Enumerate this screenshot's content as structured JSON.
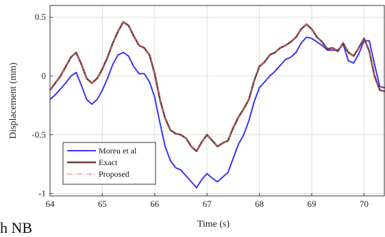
{
  "chart_data": {
    "type": "line",
    "title": "",
    "xlabel": "Time (s)",
    "ylabel": "Displacement (mm)",
    "xlim": [
      64,
      70.4
    ],
    "ylim": [
      -1.02,
      0.6
    ],
    "xticks": [
      "64",
      "65",
      "66",
      "67",
      "68",
      "69",
      "70"
    ],
    "yticks": [
      "0.5",
      "0",
      "-0.5",
      "-1"
    ],
    "xtick_values": [
      64,
      65,
      66,
      67,
      68,
      69,
      70
    ],
    "ytick_values": [
      0.5,
      0,
      -0.5,
      -1
    ],
    "grid": true,
    "legend_position": "bottom-left",
    "series": [
      {
        "name": "Moreu et al",
        "color": "#3333ff",
        "dash": "solid",
        "points": [
          [
            64,
            -0.2
          ],
          [
            64.1,
            -0.16
          ],
          [
            64.2,
            -0.11
          ],
          [
            64.3,
            -0.06
          ],
          [
            64.4,
            0.0
          ],
          [
            64.5,
            0.03
          ],
          [
            64.6,
            -0.08
          ],
          [
            64.7,
            -0.2
          ],
          [
            64.8,
            -0.24
          ],
          [
            64.9,
            -0.2
          ],
          [
            65.0,
            -0.12
          ],
          [
            65.1,
            -0.02
          ],
          [
            65.2,
            0.1
          ],
          [
            65.3,
            0.18
          ],
          [
            65.4,
            0.2
          ],
          [
            65.5,
            0.17
          ],
          [
            65.6,
            0.08
          ],
          [
            65.7,
            0.02
          ],
          [
            65.8,
            0.02
          ],
          [
            65.9,
            -0.05
          ],
          [
            66.0,
            -0.18
          ],
          [
            66.1,
            -0.4
          ],
          [
            66.2,
            -0.6
          ],
          [
            66.3,
            -0.72
          ],
          [
            66.4,
            -0.78
          ],
          [
            66.5,
            -0.8
          ],
          [
            66.6,
            -0.85
          ],
          [
            66.7,
            -0.9
          ],
          [
            66.8,
            -0.95
          ],
          [
            66.9,
            -0.88
          ],
          [
            67.0,
            -0.83
          ],
          [
            67.1,
            -0.87
          ],
          [
            67.2,
            -0.9
          ],
          [
            67.3,
            -0.86
          ],
          [
            67.4,
            -0.82
          ],
          [
            67.5,
            -0.7
          ],
          [
            67.6,
            -0.58
          ],
          [
            67.7,
            -0.5
          ],
          [
            67.8,
            -0.38
          ],
          [
            67.9,
            -0.22
          ],
          [
            68.0,
            -0.1
          ],
          [
            68.1,
            -0.05
          ],
          [
            68.2,
            0.0
          ],
          [
            68.3,
            0.04
          ],
          [
            68.4,
            0.09
          ],
          [
            68.5,
            0.14
          ],
          [
            68.6,
            0.16
          ],
          [
            68.7,
            0.2
          ],
          [
            68.8,
            0.28
          ],
          [
            68.9,
            0.33
          ],
          [
            69.0,
            0.32
          ],
          [
            69.1,
            0.29
          ],
          [
            69.2,
            0.26
          ],
          [
            69.3,
            0.22
          ],
          [
            69.4,
            0.22
          ],
          [
            69.5,
            0.22
          ],
          [
            69.6,
            0.27
          ],
          [
            69.7,
            0.13
          ],
          [
            69.8,
            0.11
          ],
          [
            69.9,
            0.19
          ],
          [
            70.0,
            0.3
          ],
          [
            70.1,
            0.3
          ],
          [
            70.2,
            0.1
          ],
          [
            70.3,
            -0.09
          ],
          [
            70.4,
            -0.1
          ]
        ]
      },
      {
        "name": "Exact",
        "color": "#6b3a35",
        "dash": "solid",
        "points": [
          [
            64,
            -0.12
          ],
          [
            64.1,
            -0.06
          ],
          [
            64.2,
            0.0
          ],
          [
            64.3,
            0.08
          ],
          [
            64.4,
            0.16
          ],
          [
            64.5,
            0.2
          ],
          [
            64.6,
            0.1
          ],
          [
            64.7,
            -0.02
          ],
          [
            64.8,
            -0.06
          ],
          [
            64.9,
            -0.02
          ],
          [
            65.0,
            0.06
          ],
          [
            65.1,
            0.16
          ],
          [
            65.2,
            0.28
          ],
          [
            65.3,
            0.38
          ],
          [
            65.4,
            0.46
          ],
          [
            65.5,
            0.43
          ],
          [
            65.6,
            0.34
          ],
          [
            65.7,
            0.26
          ],
          [
            65.8,
            0.24
          ],
          [
            65.9,
            0.18
          ],
          [
            66.0,
            0.02
          ],
          [
            66.1,
            -0.2
          ],
          [
            66.2,
            -0.36
          ],
          [
            66.3,
            -0.46
          ],
          [
            66.4,
            -0.49
          ],
          [
            66.5,
            -0.5
          ],
          [
            66.6,
            -0.53
          ],
          [
            66.7,
            -0.6
          ],
          [
            66.8,
            -0.64
          ],
          [
            66.9,
            -0.56
          ],
          [
            67.0,
            -0.5
          ],
          [
            67.1,
            -0.55
          ],
          [
            67.2,
            -0.6
          ],
          [
            67.3,
            -0.57
          ],
          [
            67.4,
            -0.55
          ],
          [
            67.5,
            -0.44
          ],
          [
            67.6,
            -0.35
          ],
          [
            67.7,
            -0.28
          ],
          [
            67.8,
            -0.2
          ],
          [
            67.9,
            -0.04
          ],
          [
            68.0,
            0.08
          ],
          [
            68.1,
            0.12
          ],
          [
            68.2,
            0.18
          ],
          [
            68.3,
            0.2
          ],
          [
            68.4,
            0.24
          ],
          [
            68.5,
            0.26
          ],
          [
            68.6,
            0.29
          ],
          [
            68.7,
            0.33
          ],
          [
            68.8,
            0.4
          ],
          [
            68.9,
            0.44
          ],
          [
            69.0,
            0.4
          ],
          [
            69.1,
            0.33
          ],
          [
            69.2,
            0.29
          ],
          [
            69.3,
            0.23
          ],
          [
            69.4,
            0.24
          ],
          [
            69.5,
            0.21
          ],
          [
            69.6,
            0.28
          ],
          [
            69.7,
            0.2
          ],
          [
            69.8,
            0.17
          ],
          [
            69.9,
            0.24
          ],
          [
            70.0,
            0.32
          ],
          [
            70.1,
            0.21
          ],
          [
            70.2,
            0.0
          ],
          [
            70.3,
            -0.12
          ],
          [
            70.4,
            -0.13
          ]
        ]
      },
      {
        "name": "Proposed",
        "color": "#e06070",
        "dash": "dashdot",
        "points": [
          [
            64,
            -0.12
          ],
          [
            64.1,
            -0.06
          ],
          [
            64.2,
            0.0
          ],
          [
            64.3,
            0.08
          ],
          [
            64.4,
            0.16
          ],
          [
            64.5,
            0.2
          ],
          [
            64.6,
            0.1
          ],
          [
            64.7,
            -0.02
          ],
          [
            64.8,
            -0.06
          ],
          [
            64.9,
            -0.02
          ],
          [
            65.0,
            0.06
          ],
          [
            65.1,
            0.16
          ],
          [
            65.2,
            0.28
          ],
          [
            65.3,
            0.38
          ],
          [
            65.4,
            0.46
          ],
          [
            65.5,
            0.43
          ],
          [
            65.6,
            0.34
          ],
          [
            65.7,
            0.26
          ],
          [
            65.8,
            0.24
          ],
          [
            65.9,
            0.18
          ],
          [
            66.0,
            0.02
          ],
          [
            66.1,
            -0.2
          ],
          [
            66.2,
            -0.36
          ],
          [
            66.3,
            -0.46
          ],
          [
            66.4,
            -0.49
          ],
          [
            66.5,
            -0.5
          ],
          [
            66.6,
            -0.53
          ],
          [
            66.7,
            -0.6
          ],
          [
            66.8,
            -0.64
          ],
          [
            66.9,
            -0.56
          ],
          [
            67.0,
            -0.5
          ],
          [
            67.1,
            -0.55
          ],
          [
            67.2,
            -0.6
          ],
          [
            67.3,
            -0.57
          ],
          [
            67.4,
            -0.55
          ],
          [
            67.5,
            -0.44
          ],
          [
            67.6,
            -0.35
          ],
          [
            67.7,
            -0.28
          ],
          [
            67.8,
            -0.2
          ],
          [
            67.9,
            -0.04
          ],
          [
            68.0,
            0.08
          ],
          [
            68.1,
            0.12
          ],
          [
            68.2,
            0.18
          ],
          [
            68.3,
            0.2
          ],
          [
            68.4,
            0.24
          ],
          [
            68.5,
            0.26
          ],
          [
            68.6,
            0.29
          ],
          [
            68.7,
            0.33
          ],
          [
            68.8,
            0.4
          ],
          [
            68.9,
            0.44
          ],
          [
            69.0,
            0.4
          ],
          [
            69.1,
            0.33
          ],
          [
            69.2,
            0.29
          ],
          [
            69.3,
            0.23
          ],
          [
            69.4,
            0.24
          ],
          [
            69.5,
            0.21
          ],
          [
            69.6,
            0.28
          ],
          [
            69.7,
            0.2
          ],
          [
            69.8,
            0.17
          ],
          [
            69.9,
            0.24
          ],
          [
            70.0,
            0.32
          ],
          [
            70.1,
            0.21
          ],
          [
            70.2,
            0.0
          ],
          [
            70.3,
            -0.12
          ],
          [
            70.4,
            -0.13
          ]
        ]
      }
    ]
  },
  "fragments": {
    "corner_text": "h NB"
  }
}
